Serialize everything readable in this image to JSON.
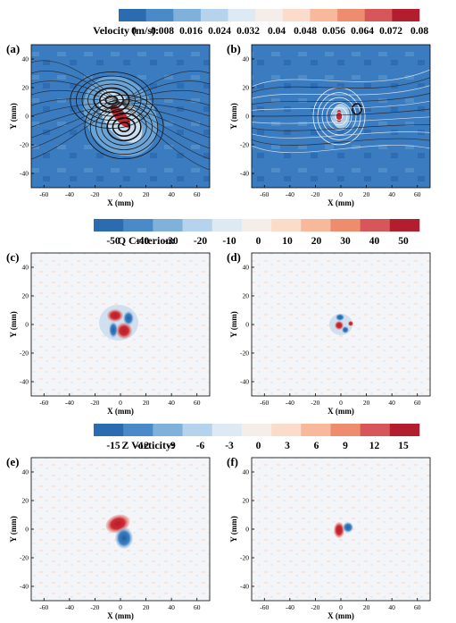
{
  "colorbars": [
    {
      "label": "Velocity (m/s):",
      "ticks": [
        "0",
        "0.008",
        "0.016",
        "0.024",
        "0.032",
        "0.04",
        "0.048",
        "0.056",
        "0.064",
        "0.072",
        "0.08"
      ],
      "colors": [
        "#2b6bb0",
        "#4a8ac8",
        "#7fb1da",
        "#b5d3ec",
        "#dde9f3",
        "#f4ede9",
        "#fbdccb",
        "#f7b89c",
        "#ee8c6e",
        "#d6565a",
        "#b31e2f"
      ]
    },
    {
      "label": "Q Criterion:",
      "ticks": [
        "-50",
        "-40",
        "-30",
        "-20",
        "-10",
        "0",
        "10",
        "20",
        "30",
        "40",
        "50"
      ],
      "colors": [
        "#2b6bb0",
        "#4a8ac8",
        "#7fb1da",
        "#b5d3ec",
        "#dde9f3",
        "#f4ede9",
        "#fbdccb",
        "#f7b89c",
        "#ee8c6e",
        "#d6565a",
        "#b31e2f"
      ]
    },
    {
      "label": "Z Vorticity:",
      "ticks": [
        "-15",
        "-12",
        "-9",
        "-6",
        "-3",
        "0",
        "3",
        "6",
        "9",
        "12",
        "15"
      ],
      "colors": [
        "#2b6bb0",
        "#4a8ac8",
        "#7fb1da",
        "#b5d3ec",
        "#dde9f3",
        "#f4ede9",
        "#fbdccb",
        "#f7b89c",
        "#ee8c6e",
        "#d6565a",
        "#b31e2f"
      ]
    }
  ],
  "panels": [
    {
      "letter": "(a)",
      "type": "velocity-streamlines"
    },
    {
      "letter": "(b)",
      "type": "velocity-streamlines"
    },
    {
      "letter": "(c)",
      "type": "q-criterion"
    },
    {
      "letter": "(d)",
      "type": "q-criterion"
    },
    {
      "letter": "(e)",
      "type": "z-vorticity"
    },
    {
      "letter": "(f)",
      "type": "z-vorticity"
    }
  ],
  "axes": {
    "xlabel": "X (mm)",
    "ylabel": "Y (mm)",
    "xticks": [
      "-60",
      "-40",
      "-20",
      "0",
      "20",
      "40",
      "60"
    ],
    "yticks": [
      "40",
      "20",
      "0",
      "-20",
      "-40"
    ],
    "xlim": [
      -70,
      70
    ],
    "ylim": [
      -50,
      50
    ]
  }
}
